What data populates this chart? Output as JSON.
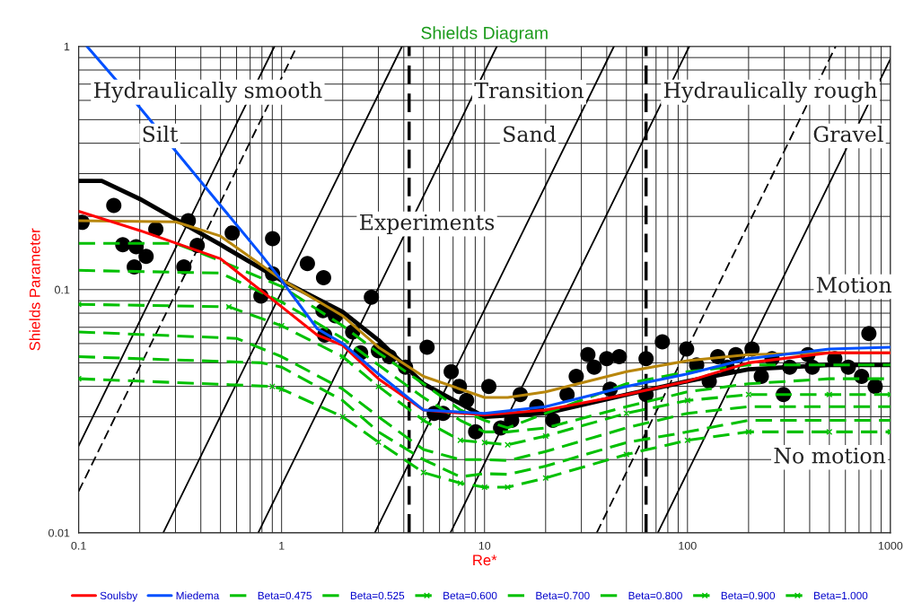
{
  "chart_data": {
    "type": "line",
    "title": "Shields Diagram",
    "xlabel": "Re*",
    "ylabel": "Shields Parameter",
    "log": "xy",
    "xlim": [
      0.1,
      1000
    ],
    "xticks": [
      0.1,
      1,
      10,
      100,
      1000
    ],
    "ylim": [
      0.01,
      1
    ],
    "yticks": [
      0.01,
      0.1,
      1
    ],
    "grid": true,
    "legend": "bottom",
    "ref_lines": [
      {
        "axis": "x",
        "value": 4.25,
        "color": "#000000",
        "line_style": "dashed"
      },
      {
        "axis": "x",
        "value": 62.5,
        "color": "#000000",
        "line_style": "dashed"
      }
    ],
    "annotations": [
      "Hydraulically smooth",
      "Transition",
      "Hydraulically rough",
      "Silt",
      "Sand",
      "Gravel",
      "Experiments",
      "Motion",
      "No motion"
    ],
    "series": [
      {
        "color": "#000000",
        "line_style": "solid",
        "x": [
          0.1,
          0.922
        ],
        "values": [
          0.0228,
          1
        ]
      },
      {
        "color": "#000000",
        "line_style": "dashed",
        "x": [
          0.1,
          1.19
        ],
        "values": [
          0.0148,
          1
        ]
      },
      {
        "color": "#000000",
        "line_style": "solid",
        "x": [
          0.261,
          3.92
        ],
        "values": [
          0.01,
          1
        ]
      },
      {
        "color": "#000000",
        "line_style": "solid",
        "x": [
          0.767,
          11.5
        ],
        "values": [
          0.01,
          1
        ]
      },
      {
        "color": "#000000",
        "line_style": "solid",
        "x": [
          2.88,
          43.4
        ],
        "values": [
          0.01,
          1
        ]
      },
      {
        "color": "#000000",
        "line_style": "solid",
        "x": [
          6.79,
          102
        ],
        "values": [
          0.01,
          1
        ]
      },
      {
        "color": "#000000",
        "line_style": "dashed",
        "x": [
          35.7,
          537
        ],
        "values": [
          0.01,
          1
        ]
      },
      {
        "color": "#000000",
        "line_style": "solid",
        "x": [
          71.4,
          1000
        ],
        "values": [
          0.01,
          0.888
        ]
      },
      {
        "type": "scatter",
        "color": "#000000",
        "marker": "circle",
        "x": [
          0.104,
          0.149,
          0.165,
          0.188,
          0.192,
          0.215,
          0.24,
          0.33,
          0.347,
          0.384,
          0.571,
          0.791,
          0.903,
          0.903,
          1.34,
          1.61,
          1.6,
          1.63,
          1.84,
          2.24,
          2.45,
          2.77,
          3.0,
          3.4,
          4.08,
          5.21,
          5.65,
          6.25,
          6.85,
          7.52,
          8.16,
          9.04,
          10.5,
          12.0,
          13.6,
          15.0,
          18.1,
          21.7,
          25.5,
          28.3,
          32.3,
          34.7,
          40.0,
          41.6,
          46.1,
          62.5,
          62.5,
          75.2,
          99.0,
          111,
          128,
          141,
          157,
          173,
          208,
          231,
          261,
          297,
          319,
          392,
          412,
          532,
          620,
          721,
          783,
          841
        ],
        "values": [
          0.189,
          0.222,
          0.153,
          0.124,
          0.15,
          0.137,
          0.177,
          0.124,
          0.192,
          0.152,
          0.171,
          0.094,
          0.162,
          0.116,
          0.128,
          0.112,
          0.082,
          0.065,
          0.078,
          0.067,
          0.055,
          0.093,
          0.056,
          0.053,
          0.048,
          0.058,
          0.031,
          0.031,
          0.046,
          0.04,
          0.035,
          0.026,
          0.04,
          0.027,
          0.029,
          0.037,
          0.033,
          0.029,
          0.037,
          0.044,
          0.054,
          0.048,
          0.052,
          0.039,
          0.053,
          0.052,
          0.037,
          0.061,
          0.057,
          0.049,
          0.042,
          0.053,
          0.048,
          0.054,
          0.057,
          0.044,
          0.052,
          0.037,
          0.048,
          0.054,
          0.048,
          0.052,
          0.048,
          0.044,
          0.066,
          0.04
        ]
      },
      {
        "color": "#000000",
        "line_style": "solid",
        "x": [
          0.1,
          0.13,
          0.2,
          0.5,
          1,
          2,
          3,
          5,
          10,
          20,
          50,
          100,
          200,
          500,
          1000
        ],
        "values": [
          0.28,
          0.28,
          0.236,
          0.153,
          0.109,
          0.081,
          0.062,
          0.041,
          0.03,
          0.031,
          0.037,
          0.042,
          0.047,
          0.049,
          0.049
        ]
      },
      {
        "name": "Soulsby",
        "color": "#ff0000",
        "line_style": "solid",
        "x": [
          0.1,
          0.2,
          0.5,
          1,
          1.5,
          2,
          3,
          5,
          10,
          20,
          50,
          100,
          200,
          500,
          1000
        ],
        "values": [
          0.21,
          0.175,
          0.134,
          0.085,
          0.065,
          0.059,
          0.043,
          0.032,
          0.0305,
          0.032,
          0.037,
          0.042,
          0.05,
          0.055,
          0.055
        ]
      },
      {
        "name": "Miedema",
        "color": "#0050ff",
        "line_style": "solid",
        "x": [
          0.11,
          0.2,
          0.5,
          0.8,
          1,
          1.5,
          2,
          3,
          5,
          10,
          20,
          50,
          100,
          200,
          500,
          1000
        ],
        "values": [
          1.0,
          0.561,
          0.222,
          0.138,
          0.109,
          0.069,
          0.06,
          0.045,
          0.032,
          0.031,
          0.033,
          0.04,
          0.045,
          0.052,
          0.057,
          0.058
        ]
      },
      {
        "name": "Beta=0.475",
        "color": "#00c000",
        "line_style": "dashed",
        "x": [
          0.1,
          0.3,
          0.47,
          1,
          2,
          3,
          5,
          7.6,
          10,
          13,
          20,
          50,
          100,
          200,
          500,
          1000
        ],
        "values": [
          0.155,
          0.155,
          0.134,
          0.103,
          0.071,
          0.055,
          0.041,
          0.032,
          0.029,
          0.027,
          0.031,
          0.041,
          0.046,
          0.049,
          0.049,
          0.049
        ]
      },
      {
        "name": "Beta=0.525",
        "color": "#00c000",
        "line_style": "dashed",
        "x": [
          0.1,
          0.5,
          1,
          2,
          3,
          5,
          7.6,
          10,
          13,
          20,
          50,
          100,
          200,
          500,
          1000
        ],
        "values": [
          0.12,
          0.117,
          0.089,
          0.063,
          0.049,
          0.036,
          0.029,
          0.026,
          0.026,
          0.027,
          0.033,
          0.038,
          0.041,
          0.043,
          0.043
        ]
      },
      {
        "name": "Beta=0.600",
        "color": "#00c000",
        "line_style": "dashed",
        "marker": "cross",
        "x": [
          0.1,
          0.55,
          1,
          2,
          3,
          5,
          7.6,
          10,
          13,
          20,
          50,
          100,
          200,
          500,
          1000
        ],
        "values": [
          0.087,
          0.085,
          0.071,
          0.053,
          0.04,
          0.029,
          0.024,
          0.0235,
          0.023,
          0.025,
          0.031,
          0.035,
          0.037,
          0.037,
          0.037
        ]
      },
      {
        "name": "Beta=0.700",
        "color": "#00c000",
        "line_style": "dashed",
        "x": [
          0.1,
          0.6,
          1,
          2,
          3,
          5,
          7.6,
          10,
          13,
          20,
          50,
          100,
          200,
          500,
          1000
        ],
        "values": [
          0.067,
          0.063,
          0.053,
          0.039,
          0.03,
          0.022,
          0.02,
          0.02,
          0.0198,
          0.0216,
          0.027,
          0.031,
          0.033,
          0.033,
          0.033
        ]
      },
      {
        "name": "Beta=0.800",
        "color": "#00c000",
        "line_style": "dashed",
        "x": [
          0.1,
          0.8,
          1,
          2,
          3,
          5,
          7.6,
          10,
          13,
          20,
          50,
          100,
          200,
          500,
          1000
        ],
        "values": [
          0.053,
          0.05,
          0.048,
          0.035,
          0.026,
          0.02,
          0.017,
          0.0175,
          0.0174,
          0.0188,
          0.0235,
          0.026,
          0.029,
          0.029,
          0.029
        ]
      },
      {
        "name": "Beta=0.900",
        "color": "#00c000",
        "line_style": "dashed",
        "marker": "cross",
        "x": [
          0.1,
          0.9,
          1,
          2,
          3,
          5,
          7.6,
          10,
          13,
          20,
          50,
          100,
          200,
          500,
          1000
        ],
        "values": [
          0.043,
          0.04,
          0.039,
          0.03,
          0.0236,
          0.0177,
          0.016,
          0.0154,
          0.0154,
          0.0168,
          0.021,
          0.024,
          0.026,
          0.026,
          0.026
        ]
      },
      {
        "name": "Beta=1.000",
        "color": "#00c000",
        "line_style": "dashed",
        "marker": "cross"
      },
      {
        "color": "#b8860b",
        "line_style": "solid",
        "x": [
          0.1,
          0.3,
          0.5,
          1,
          2,
          3,
          5,
          10,
          13,
          20,
          50,
          100,
          200,
          500,
          1000
        ],
        "values": [
          0.192,
          0.19,
          0.166,
          0.11,
          0.078,
          0.058,
          0.044,
          0.036,
          0.036,
          0.038,
          0.046,
          0.051,
          0.054,
          0.055,
          0.055
        ]
      }
    ]
  }
}
